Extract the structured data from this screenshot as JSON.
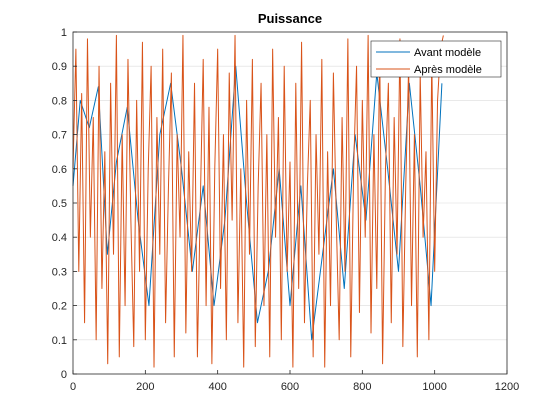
{
  "chart_data": {
    "type": "line",
    "title": "Puissance",
    "xlabel": "",
    "ylabel": "",
    "xlim": [
      0,
      1200
    ],
    "ylim": [
      0,
      1
    ],
    "grid": "y-only",
    "legend_position": "top-right",
    "x_ticks": [
      "0",
      "200",
      "400",
      "600",
      "800",
      "1000",
      "1200"
    ],
    "y_ticks": [
      "0",
      "0.1",
      "0.2",
      "0.3",
      "0.4",
      "0.5",
      "0.6",
      "0.7",
      "0.8",
      "0.9",
      "1"
    ],
    "series": [
      {
        "name": "Avant modèle",
        "color": "#0072BD",
        "x": [
          0,
          20,
          45,
          70,
          95,
          120,
          150,
          180,
          210,
          240,
          270,
          300,
          330,
          360,
          390,
          420,
          450,
          480,
          510,
          540,
          570,
          600,
          630,
          660,
          690,
          720,
          750,
          780,
          810,
          840,
          870,
          900,
          930,
          960,
          990,
          1020
        ],
        "y": [
          0.55,
          0.8,
          0.72,
          0.84,
          0.35,
          0.62,
          0.78,
          0.45,
          0.2,
          0.7,
          0.85,
          0.6,
          0.3,
          0.55,
          0.2,
          0.45,
          0.9,
          0.5,
          0.15,
          0.3,
          0.6,
          0.2,
          0.55,
          0.1,
          0.35,
          0.6,
          0.25,
          0.7,
          0.45,
          0.88,
          0.6,
          0.3,
          0.85,
          0.55,
          0.2,
          0.85
        ]
      },
      {
        "name": "Après modèle",
        "color": "#D95319",
        "x": [
          0,
          8,
          16,
          24,
          32,
          40,
          48,
          56,
          64,
          72,
          80,
          88,
          96,
          104,
          112,
          120,
          128,
          136,
          144,
          152,
          160,
          168,
          176,
          184,
          192,
          200,
          208,
          216,
          224,
          232,
          240,
          248,
          256,
          264,
          272,
          280,
          288,
          296,
          304,
          312,
          320,
          328,
          336,
          344,
          352,
          360,
          368,
          376,
          384,
          392,
          400,
          408,
          416,
          424,
          432,
          440,
          448,
          456,
          464,
          472,
          480,
          488,
          496,
          504,
          512,
          520,
          528,
          536,
          544,
          552,
          560,
          568,
          576,
          584,
          592,
          600,
          608,
          616,
          624,
          632,
          640,
          648,
          656,
          664,
          672,
          680,
          688,
          696,
          704,
          712,
          720,
          728,
          736,
          744,
          752,
          760,
          768,
          776,
          784,
          792,
          800,
          808,
          816,
          824,
          832,
          840,
          848,
          856,
          864,
          872,
          880,
          888,
          896,
          904,
          912,
          920,
          928,
          936,
          944,
          952,
          960,
          968,
          976,
          984,
          992,
          1000,
          1008,
          1016,
          1024
        ],
        "y": [
          0.6,
          0.95,
          0.3,
          0.82,
          0.15,
          0.98,
          0.4,
          0.75,
          0.1,
          0.9,
          0.25,
          0.65,
          0.03,
          0.85,
          0.35,
          0.99,
          0.05,
          0.7,
          0.2,
          0.92,
          0.45,
          0.08,
          0.8,
          0.3,
          0.97,
          0.1,
          0.6,
          0.9,
          0.02,
          0.75,
          0.35,
          0.95,
          0.15,
          0.55,
          0.88,
          0.05,
          0.7,
          0.4,
          0.99,
          0.12,
          0.65,
          0.3,
          0.85,
          0.05,
          0.5,
          0.92,
          0.2,
          0.78,
          0.03,
          0.6,
          0.95,
          0.25,
          0.7,
          0.1,
          0.88,
          0.45,
          0.99,
          0.15,
          0.6,
          0.02,
          0.8,
          0.35,
          0.92,
          0.08,
          0.55,
          0.85,
          0.2,
          0.7,
          0.05,
          0.95,
          0.4,
          0.75,
          0.1,
          0.9,
          0.3,
          0.62,
          0.02,
          0.85,
          0.25,
          0.97,
          0.15,
          0.55,
          0.8,
          0.05,
          0.7,
          0.35,
          0.92,
          0.02,
          0.65,
          0.2,
          0.88,
          0.45,
          0.1,
          0.75,
          0.3,
          0.98,
          0.05,
          0.6,
          0.9,
          0.18,
          0.8,
          0.4,
          0.99,
          0.12,
          0.7,
          0.25,
          0.95,
          0.03,
          0.6,
          0.85,
          0.15,
          0.75,
          0.35,
          0.98,
          0.08,
          0.55,
          0.9,
          0.2,
          0.7,
          0.05,
          0.88,
          0.4,
          0.65,
          0.1,
          0.92,
          0.3,
          0.8,
          0.95,
          0.99
        ]
      }
    ]
  }
}
